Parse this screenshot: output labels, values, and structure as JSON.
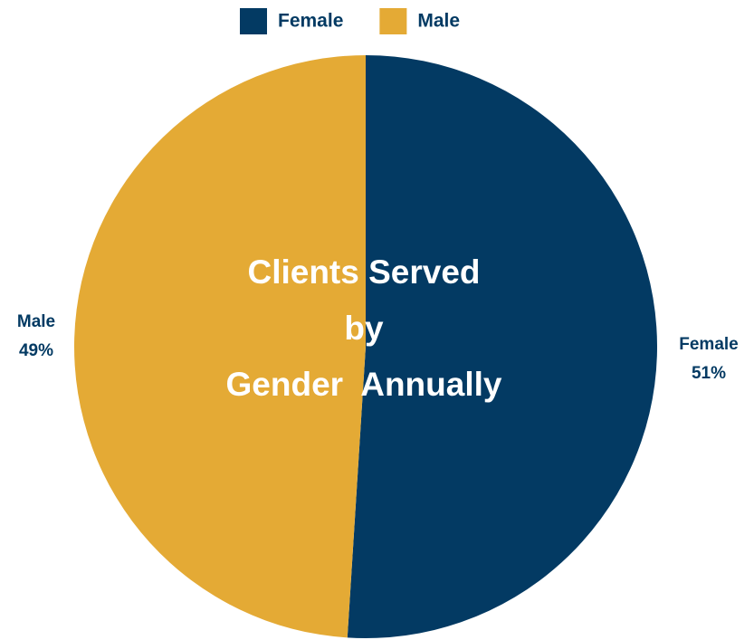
{
  "chart_data": {
    "type": "pie",
    "title": [
      "Clients Served",
      "by",
      "Gender  Annually"
    ],
    "categories": [
      "Female",
      "Male"
    ],
    "values": [
      51,
      49
    ],
    "value_labels": [
      "51%",
      "49%"
    ],
    "colors": [
      "#033a63",
      "#e4aa35"
    ],
    "legend": "top"
  }
}
